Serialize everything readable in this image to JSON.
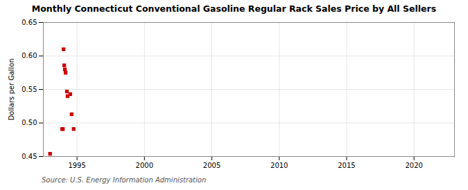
{
  "chart_data": {
    "type": "scatter",
    "title": "Monthly Connecticut Conventional Gasoline Regular Rack Sales Price by All Sellers",
    "ylabel": "Dollars per Gallon",
    "source": "Source: U.S. Energy Information Administration",
    "x": [
      1993.0,
      1993.9,
      1993.95,
      1994.0,
      1994.05,
      1994.1,
      1994.15,
      1994.25,
      1994.3,
      1994.5,
      1994.6,
      1994.75
    ],
    "values": [
      0.454,
      0.491,
      0.491,
      0.61,
      0.586,
      0.58,
      0.575,
      0.547,
      0.54,
      0.543,
      0.513,
      0.491
    ],
    "color": "#cc0000",
    "marker": "square",
    "xlim": [
      1992.5,
      2023
    ],
    "ylim": [
      0.45,
      0.65
    ],
    "xticks": [
      1995,
      2000,
      2005,
      2010,
      2015,
      2020
    ],
    "yticks": [
      0.45,
      {
        "value": 0.5,
        "label": "0.50"
      },
      0.55,
      {
        "value": 0.6,
        "label": "0.60"
      },
      0.65
    ],
    "grid": true
  }
}
